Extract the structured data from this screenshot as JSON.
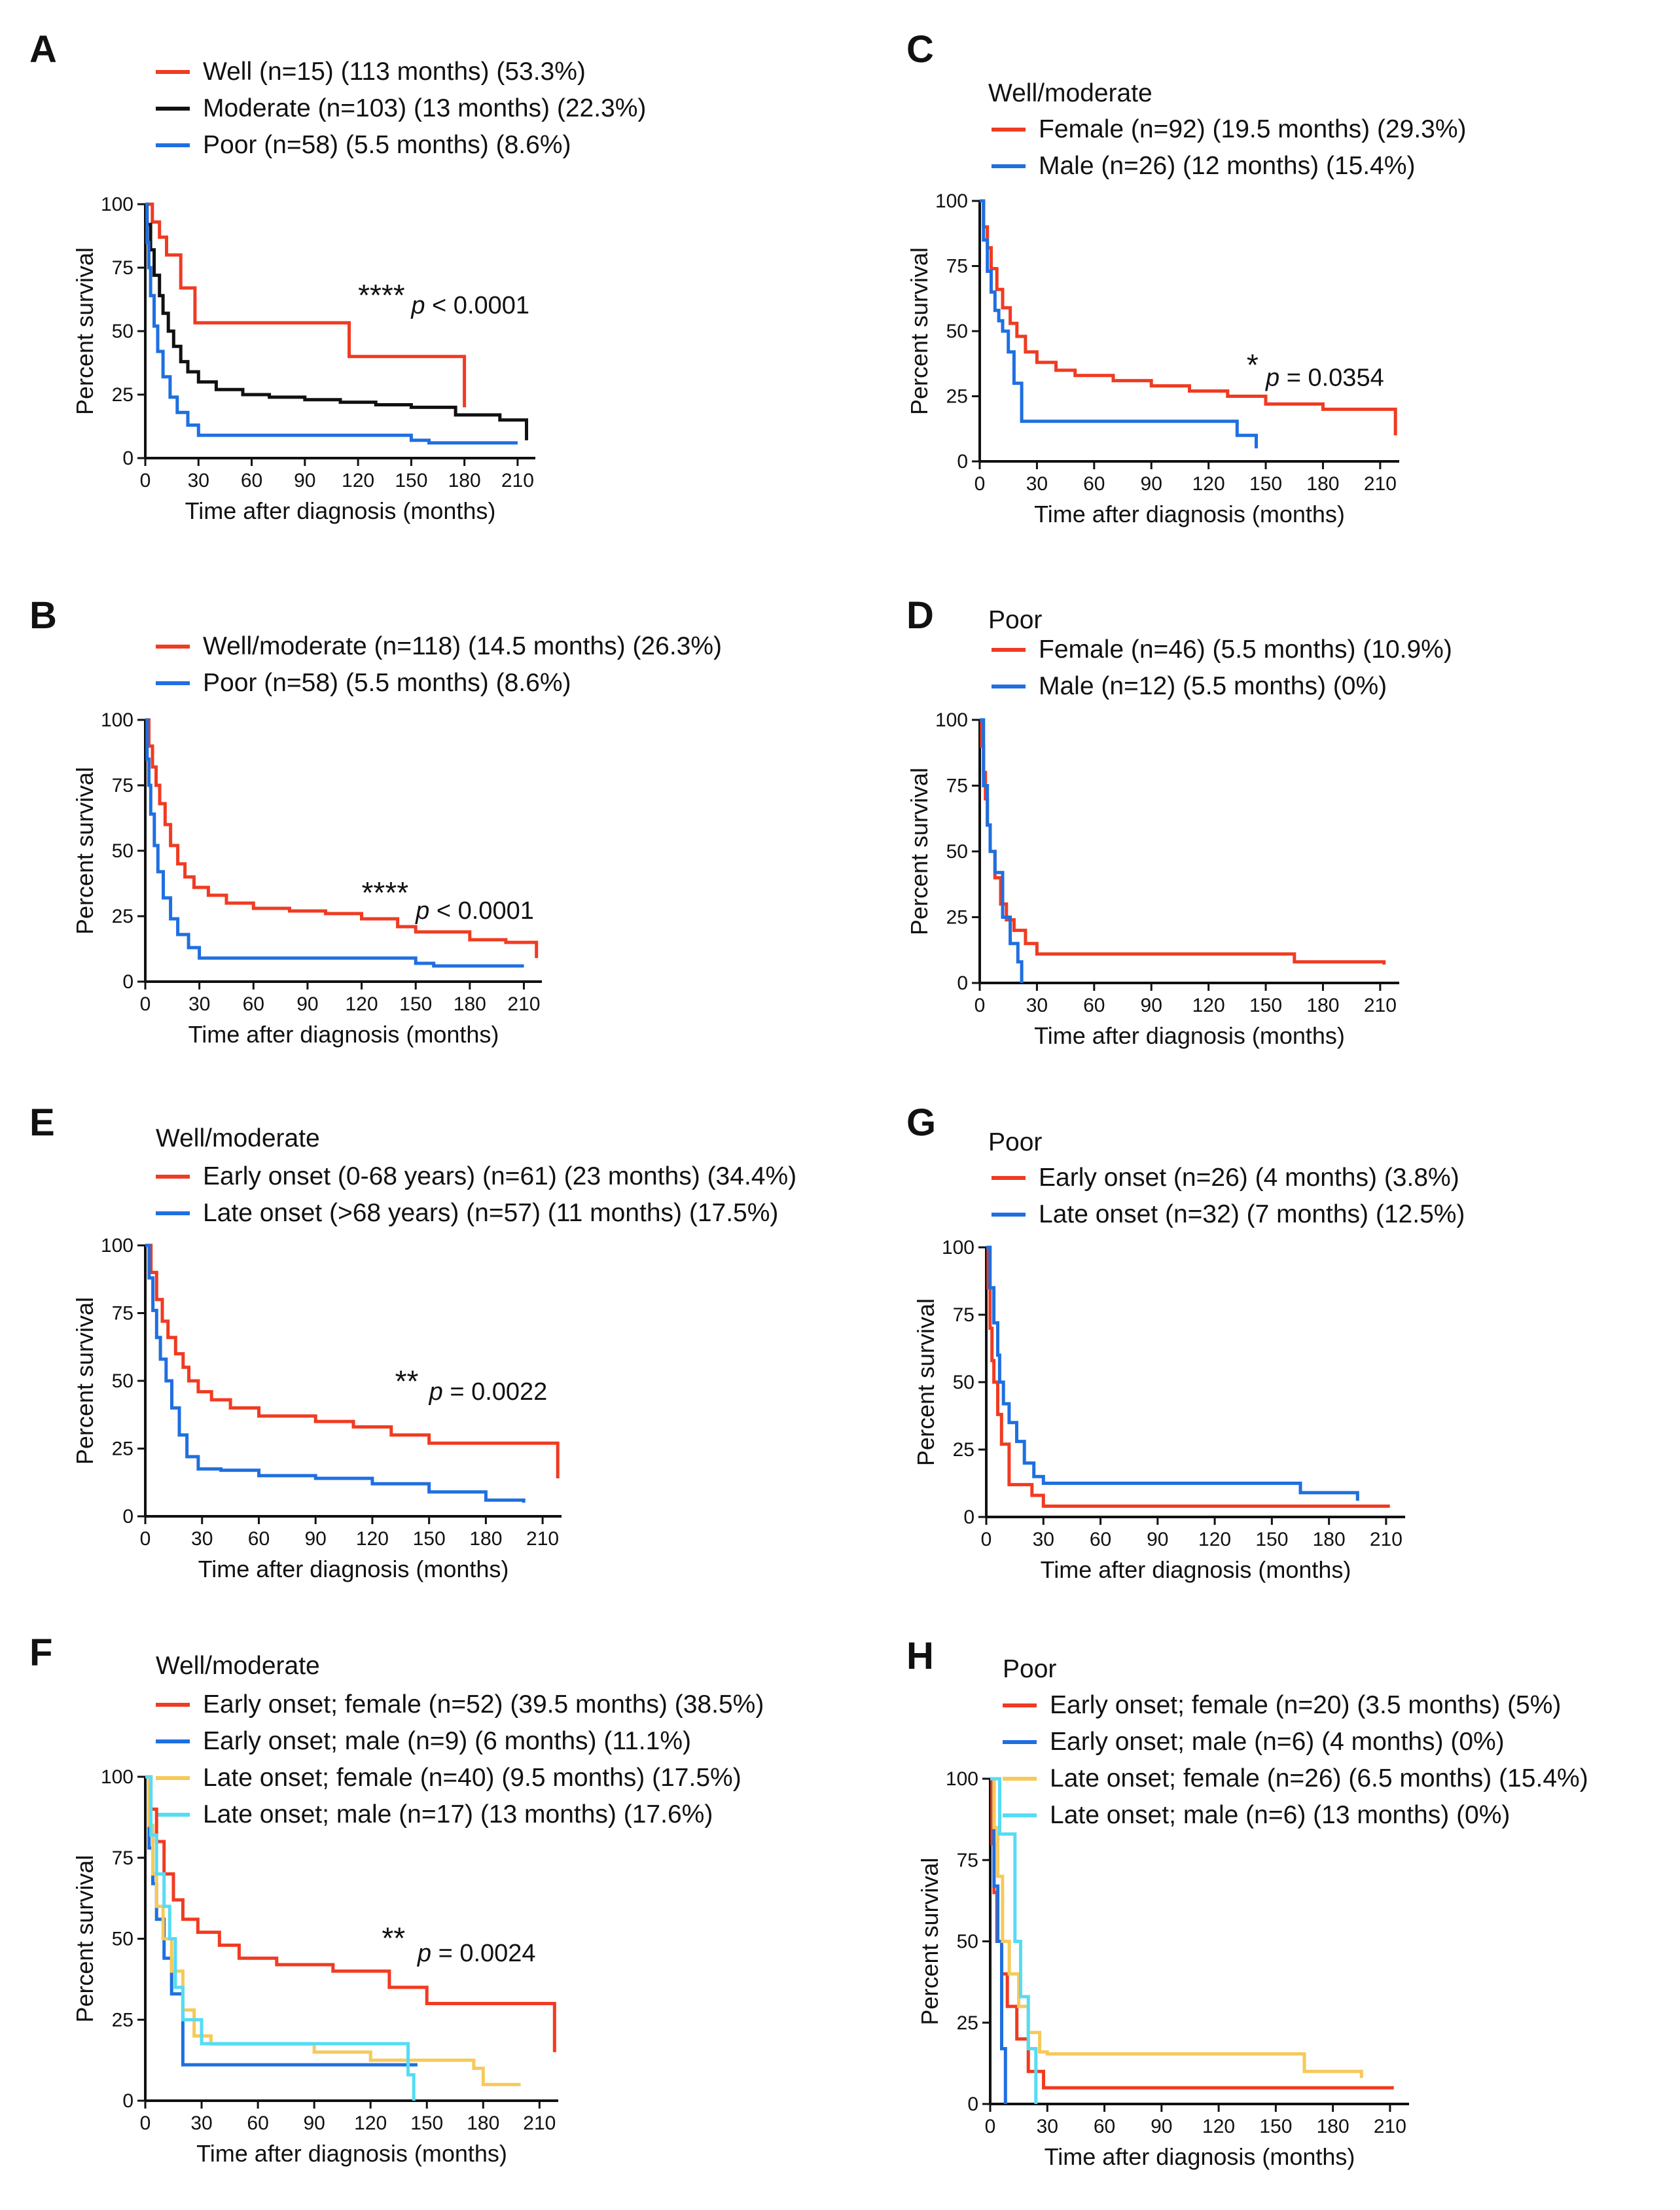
{
  "colors": {
    "red": "#f03b22",
    "black": "#111111",
    "blue": "#1f6fe0",
    "yellow": "#f6c95a",
    "cyan": "#55dcf4",
    "axis": "#111111"
  },
  "chart_data": [
    {
      "id": "A",
      "type": "line",
      "letter": "A",
      "group_title": "",
      "xlabel": "Time after diagnosis (months)",
      "ylabel": "Percent survival",
      "xlim": [
        0,
        220
      ],
      "ylim": [
        0,
        100
      ],
      "xticks": [
        0,
        30,
        60,
        90,
        120,
        150,
        180,
        210
      ],
      "yticks": [
        0,
        25,
        50,
        75,
        100
      ],
      "significance": "****",
      "p_label": "p",
      "p_value": "< 0.0001",
      "series": [
        {
          "name": "Well (n=15) (113 months) (53.3%)",
          "color": "red",
          "x": [
            0,
            4,
            8,
            12,
            20,
            28,
            113,
            115,
            180
          ],
          "y": [
            100,
            93,
            87,
            80,
            67,
            53.3,
            53.3,
            40,
            20
          ]
        },
        {
          "name": "Moderate (n=103) (13 months) (22.3%)",
          "color": "black",
          "x": [
            0,
            1,
            3,
            5,
            8,
            10,
            13,
            16,
            20,
            24,
            30,
            40,
            55,
            70,
            90,
            110,
            130,
            150,
            175,
            200,
            215
          ],
          "y": [
            100,
            92,
            82,
            72,
            64,
            57,
            50,
            44,
            38,
            34,
            30,
            27,
            25,
            24,
            23,
            22,
            21,
            20,
            17,
            15,
            7
          ]
        },
        {
          "name": "Poor (n=58) (5.5 months) (8.6%)",
          "color": "blue",
          "x": [
            0,
            1,
            2,
            3,
            5,
            7,
            10,
            14,
            18,
            24,
            30,
            145,
            150,
            160,
            210
          ],
          "y": [
            100,
            85,
            75,
            64,
            52,
            42,
            32,
            24,
            18,
            13,
            9,
            9,
            7,
            6,
            6
          ]
        }
      ]
    },
    {
      "id": "B",
      "type": "line",
      "letter": "B",
      "group_title": "",
      "xlabel": "Time after diagnosis (months)",
      "ylabel": "Percent survival",
      "xlim": [
        0,
        220
      ],
      "ylim": [
        0,
        100
      ],
      "xticks": [
        0,
        30,
        60,
        90,
        120,
        150,
        180,
        210
      ],
      "yticks": [
        0,
        25,
        50,
        75,
        100
      ],
      "significance": "****",
      "p_label": "p",
      "p_value": "< 0.0001",
      "series": [
        {
          "name": "Well/moderate (n=118) (14.5 months) (26.3%)",
          "color": "red",
          "x": [
            0,
            2,
            4,
            6,
            8,
            11,
            14,
            18,
            22,
            27,
            35,
            45,
            60,
            80,
            100,
            120,
            140,
            150,
            180,
            200,
            217
          ],
          "y": [
            100,
            90,
            82,
            75,
            68,
            60,
            52,
            45,
            40,
            36,
            33,
            30,
            28,
            27,
            26,
            24,
            21,
            19,
            16,
            15,
            9
          ]
        },
        {
          "name": "Poor (n=58) (5.5 months) (8.6%)",
          "color": "blue",
          "x": [
            0,
            1,
            2,
            3,
            5,
            7,
            10,
            14,
            18,
            24,
            30,
            145,
            150,
            160,
            210
          ],
          "y": [
            100,
            85,
            75,
            64,
            52,
            42,
            32,
            24,
            18,
            13,
            9,
            9,
            7,
            6,
            6
          ]
        }
      ]
    },
    {
      "id": "C",
      "type": "line",
      "letter": "C",
      "group_title": "Well/moderate",
      "xlabel": "Time after diagnosis (months)",
      "ylabel": "Percent survival",
      "xlim": [
        0,
        220
      ],
      "ylim": [
        0,
        100
      ],
      "xticks": [
        0,
        30,
        60,
        90,
        120,
        150,
        180,
        210
      ],
      "yticks": [
        0,
        25,
        50,
        75,
        100
      ],
      "significance": "*",
      "p_label": "p",
      "p_value": "= 0.0354",
      "series": [
        {
          "name": "Female (n=92) (19.5 months) (29.3%)",
          "color": "red",
          "x": [
            0,
            2,
            4,
            6,
            9,
            12,
            16,
            19.5,
            24,
            30,
            40,
            50,
            70,
            90,
            110,
            130,
            150,
            180,
            218
          ],
          "y": [
            100,
            90,
            82,
            74,
            66,
            59,
            53,
            48,
            42,
            38,
            35,
            33,
            31,
            29,
            27,
            25,
            22,
            20,
            10
          ]
        },
        {
          "name": "Male (n=26) (12 months) (15.4%)",
          "color": "blue",
          "x": [
            0,
            2,
            4,
            6,
            8,
            10,
            12,
            15,
            18,
            22,
            125,
            135,
            145
          ],
          "y": [
            100,
            85,
            73,
            65,
            58,
            54,
            50,
            42,
            30,
            15.4,
            15.4,
            10,
            5
          ]
        }
      ]
    },
    {
      "id": "D",
      "type": "line",
      "letter": "D",
      "group_title": "Poor",
      "xlabel": "Time after diagnosis (months)",
      "ylabel": "Percent survival",
      "xlim": [
        0,
        220
      ],
      "ylim": [
        0,
        100
      ],
      "xticks": [
        0,
        30,
        60,
        90,
        120,
        150,
        180,
        210
      ],
      "yticks": [
        0,
        25,
        50,
        75,
        100
      ],
      "significance": "",
      "p_label": "",
      "p_value": "",
      "series": [
        {
          "name": "Female (n=46) (5.5 months) (10.9%)",
          "color": "red",
          "x": [
            0,
            1,
            2,
            3,
            4,
            5.5,
            8,
            11,
            14,
            18,
            24,
            30,
            145,
            165,
            212
          ],
          "y": [
            100,
            90,
            80,
            70,
            60,
            50,
            40,
            30,
            24,
            20,
            15,
            11,
            11,
            8,
            7
          ]
        },
        {
          "name": "Male (n=12) (5.5 months) (0%)",
          "color": "blue",
          "x": [
            0,
            2,
            4,
            5.5,
            8,
            12,
            16,
            20,
            22
          ],
          "y": [
            100,
            75,
            60,
            50,
            42,
            25,
            15,
            8,
            0
          ]
        }
      ]
    },
    {
      "id": "E",
      "type": "line",
      "letter": "E",
      "group_title": "Well/moderate",
      "xlabel": "Time after diagnosis (months)",
      "ylabel": "Percent survival",
      "xlim": [
        0,
        220
      ],
      "ylim": [
        0,
        100
      ],
      "xticks": [
        0,
        30,
        60,
        90,
        120,
        150,
        180,
        210
      ],
      "yticks": [
        0,
        25,
        50,
        75,
        100
      ],
      "significance": "**",
      "p_label": "p",
      "p_value": "= 0.0022",
      "series": [
        {
          "name": "Early onset (0-68 years) (n=61) (23 months) (34.4%)",
          "color": "red",
          "x": [
            0,
            3,
            6,
            9,
            12,
            16,
            20,
            23,
            28,
            35,
            45,
            60,
            90,
            110,
            130,
            150,
            218
          ],
          "y": [
            100,
            90,
            80,
            72,
            66,
            60,
            55,
            50,
            46,
            43,
            40,
            37,
            35,
            33,
            30,
            27,
            14
          ]
        },
        {
          "name": "Late onset (>68 years) (n=57) (11 months) (17.5%)",
          "color": "blue",
          "x": [
            0,
            2,
            4,
            6,
            8,
            11,
            14,
            18,
            22,
            28,
            40,
            60,
            90,
            120,
            150,
            180,
            200
          ],
          "y": [
            100,
            88,
            76,
            66,
            58,
            50,
            40,
            30,
            22,
            17.5,
            17,
            15,
            14,
            12,
            9,
            6,
            5
          ]
        }
      ]
    },
    {
      "id": "G",
      "type": "line",
      "letter": "G",
      "group_title": "Poor",
      "xlabel": "Time after diagnosis (months)",
      "ylabel": "Percent survival",
      "xlim": [
        0,
        220
      ],
      "ylim": [
        0,
        100
      ],
      "xticks": [
        0,
        30,
        60,
        90,
        120,
        150,
        180,
        210
      ],
      "yticks": [
        0,
        25,
        50,
        75,
        100
      ],
      "significance": "",
      "p_label": "",
      "p_value": "",
      "series": [
        {
          "name": "Early onset (n=26) (4 months) (3.8%)",
          "color": "red",
          "x": [
            0,
            1,
            2,
            3,
            4,
            6,
            8,
            12,
            16,
            24,
            30,
            212
          ],
          "y": [
            100,
            85,
            70,
            58,
            50,
            38,
            27,
            12,
            12,
            8,
            4,
            4
          ]
        },
        {
          "name": "Late onset (n=32) (7 months) (12.5%)",
          "color": "blue",
          "x": [
            0,
            2,
            4,
            6,
            7,
            9,
            12,
            16,
            20,
            25,
            30,
            145,
            165,
            195
          ],
          "y": [
            100,
            85,
            72,
            60,
            50,
            42,
            35,
            28,
            20,
            15,
            12.5,
            12.5,
            9,
            6
          ]
        }
      ]
    },
    {
      "id": "F",
      "type": "line",
      "letter": "F",
      "group_title": "Well/moderate",
      "xlabel": "Time after diagnosis (months)",
      "ylabel": "Percent survival",
      "xlim": [
        0,
        220
      ],
      "ylim": [
        0,
        100
      ],
      "xticks": [
        0,
        30,
        60,
        90,
        120,
        150,
        180,
        210
      ],
      "yticks": [
        0,
        25,
        50,
        75,
        100
      ],
      "significance": "**",
      "p_label": "p",
      "p_value": "= 0.0024",
      "series": [
        {
          "name": "Early onset; female (n=52) (39.5 months) (38.5%)",
          "color": "red",
          "x": [
            0,
            3,
            6,
            10,
            15,
            20,
            28,
            39.5,
            50,
            70,
            100,
            130,
            150,
            190,
            218
          ],
          "y": [
            100,
            90,
            80,
            70,
            62,
            56,
            52,
            48,
            44,
            42,
            40,
            35,
            30,
            30,
            15
          ]
        },
        {
          "name": "Early onset; male (n=9) (6 months) (11.1%)",
          "color": "blue",
          "x": [
            0,
            2,
            4,
            6,
            10,
            14,
            20,
            145
          ],
          "y": [
            100,
            78,
            67,
            56,
            44,
            33,
            11.1,
            11.1
          ]
        },
        {
          "name": "Late onset; female (n=40) (9.5 months) (17.5%)",
          "color": "yellow",
          "x": [
            0,
            2,
            4,
            6,
            9.5,
            14,
            20,
            26,
            35,
            60,
            90,
            120,
            145,
            175,
            180,
            200
          ],
          "y": [
            100,
            85,
            70,
            60,
            50,
            40,
            28,
            20,
            17.5,
            17.5,
            15,
            12.5,
            12.5,
            10,
            5,
            5
          ]
        },
        {
          "name": "Late onset; male (n=17) (13 months) (17.6%)",
          "color": "cyan",
          "x": [
            0,
            3,
            6,
            10,
            13,
            16,
            20,
            30,
            130,
            140,
            143
          ],
          "y": [
            100,
            82,
            70,
            60,
            50,
            35,
            25,
            17.6,
            17.6,
            8,
            0
          ]
        }
      ]
    },
    {
      "id": "H",
      "type": "line",
      "letter": "H",
      "group_title": "Poor",
      "xlabel": "Time after diagnosis (months)",
      "ylabel": "Percent survival",
      "xlim": [
        0,
        220
      ],
      "ylim": [
        0,
        100
      ],
      "xticks": [
        0,
        30,
        60,
        90,
        120,
        150,
        180,
        210
      ],
      "yticks": [
        0,
        25,
        50,
        75,
        100
      ],
      "significance": "",
      "p_label": "",
      "p_value": "",
      "series": [
        {
          "name": "Early onset; female (n=20) (3.5 months) (5%)",
          "color": "red",
          "x": [
            0,
            1,
            2,
            3.5,
            6,
            9,
            14,
            20,
            28,
            212
          ],
          "y": [
            100,
            80,
            65,
            50,
            40,
            30,
            20,
            10,
            5,
            5
          ]
        },
        {
          "name": "Early onset; male (n=6) (4 months) (0%)",
          "color": "blue",
          "x": [
            0,
            2,
            4,
            6,
            8
          ],
          "y": [
            100,
            67,
            50,
            17,
            0
          ]
        },
        {
          "name": "Late onset; female (n=26) (6.5 months) (15.4%)",
          "color": "yellow",
          "x": [
            0,
            2,
            4,
            6.5,
            10,
            15,
            20,
            26,
            30,
            145,
            165,
            195
          ],
          "y": [
            100,
            85,
            70,
            50,
            40,
            30,
            22,
            16,
            15.4,
            15.4,
            10,
            8
          ]
        },
        {
          "name": "Late onset; male (n=6) (13 months) (0%)",
          "color": "cyan",
          "x": [
            0,
            5,
            13,
            16,
            20,
            24
          ],
          "y": [
            100,
            83,
            50,
            33,
            17,
            0
          ]
        }
      ]
    }
  ]
}
